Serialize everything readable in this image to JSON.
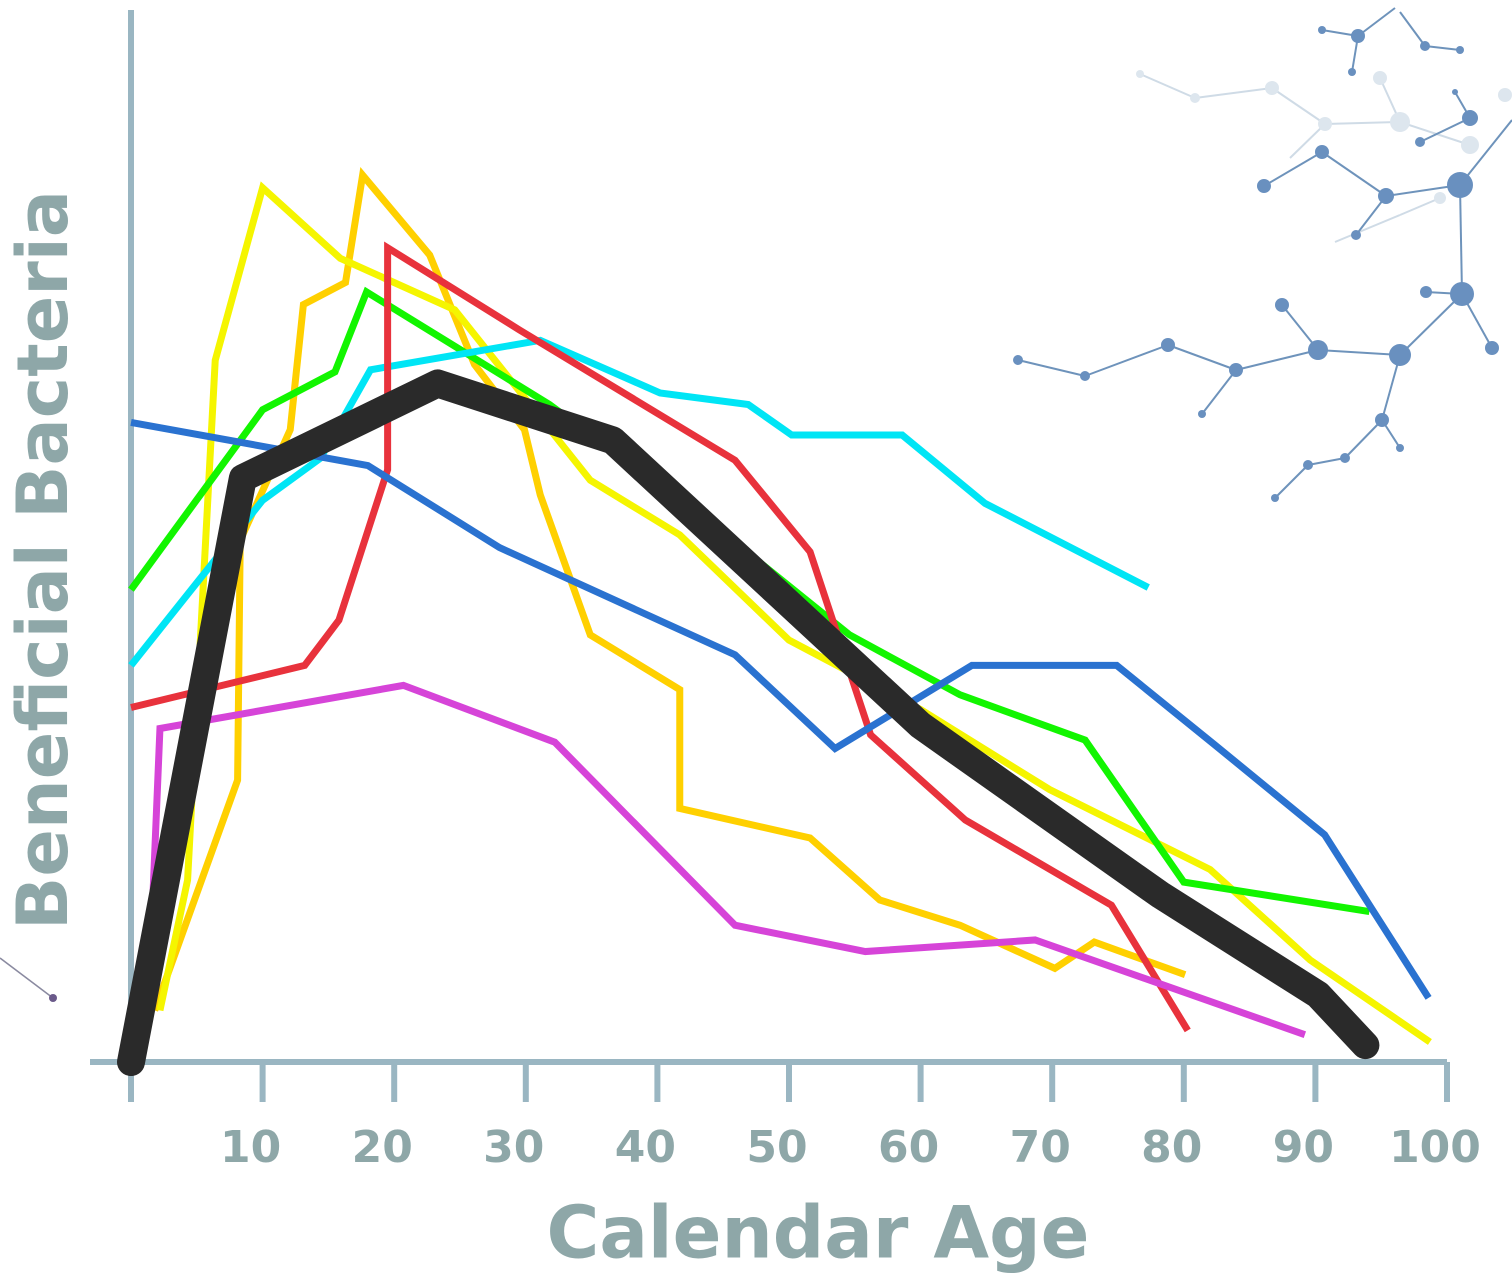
{
  "chart_data": {
    "type": "line",
    "x_label": "Calendar Age",
    "y_label": "Beneficial Bacteria",
    "xlim": [
      0,
      100
    ],
    "ylim": [
      0,
      100
    ],
    "xticks": [
      10,
      20,
      30,
      40,
      50,
      60,
      70,
      80,
      90,
      100
    ],
    "series": [
      {
        "color": "#ffd000",
        "x": [
          1.8,
          8.1,
          8.3,
          12.1,
          13.1,
          16.3,
          17.6,
          22.7,
          26.1,
          29.9,
          31.1,
          34.9,
          41.7,
          41.7,
          51.6,
          56.9,
          63,
          70.2,
          73.2,
          80.1
        ],
        "values": [
          4.9,
          26.8,
          49.6,
          60.1,
          72,
          74.1,
          84.3,
          76.7,
          66.3,
          60.1,
          53.9,
          40.6,
          35.4,
          24.1,
          21.3,
          15.4,
          13,
          8.9,
          11.4,
          8.3
        ]
      },
      {
        "color": "#f5f500",
        "x": [
          2.2,
          4.3,
          6.4,
          10,
          15.9,
          24.6,
          34.9,
          41.7,
          50,
          60,
          69.8,
          82,
          89.6,
          98.7
        ],
        "values": [
          4.9,
          17.3,
          66.7,
          83.1,
          76.4,
          71.5,
          55.3,
          50.1,
          40.1,
          33.5,
          25.9,
          18.3,
          9.7,
          1.9
        ]
      },
      {
        "color": "#12f500",
        "x": [
          0,
          10,
          15.5,
          17.9,
          31.8,
          44.7,
          54.6,
          63,
          72.5,
          80,
          94.1
        ],
        "values": [
          44.9,
          62,
          65.6,
          73.2,
          62.5,
          50.6,
          40.6,
          34.9,
          30.6,
          17.1,
          14.3
        ]
      },
      {
        "color": "#00e5f5",
        "x": [
          0,
          10,
          14.4,
          18.2,
          31.1,
          40.2,
          46.9,
          50.2,
          58.6,
          64.9,
          77.3
        ],
        "values": [
          37.7,
          53.4,
          57.4,
          65.8,
          68.6,
          63.6,
          62.5,
          59.6,
          59.6,
          53.1,
          45.1
        ]
      },
      {
        "color": "#e8323c",
        "x": [
          0,
          13.2,
          15.8,
          19.5,
          19.5,
          29.5,
          45.9,
          51.6,
          56.2,
          63.4,
          74.5,
          80.3
        ],
        "values": [
          33.7,
          37.7,
          42,
          56.3,
          77.4,
          69.6,
          57.2,
          48.5,
          31.1,
          23,
          14.9,
          3
        ]
      },
      {
        "color": "#2a72d0",
        "x": [
          0,
          18,
          28,
          45.9,
          53.5,
          63.9,
          74.9,
          82.4,
          90.7,
          98.6
        ],
        "values": [
          60.8,
          56.7,
          48.9,
          38.7,
          29.8,
          37.7,
          37.7,
          30.1,
          21.6,
          6.1
        ]
      },
      {
        "color": "#d644d8",
        "x": [
          1.3,
          2.2,
          20.7,
          32.2,
          45.9,
          55.8,
          68.7,
          89.2
        ],
        "values": [
          4.9,
          31.7,
          35.8,
          30.4,
          13,
          10.5,
          11.6,
          2.6
        ]
      },
      {
        "color": "#2a2a2a",
        "x": [
          0,
          8.5,
          23.3,
          36.6,
          60,
          78.2,
          90.2,
          93.8
        ],
        "values": [
          0,
          55.5,
          64.5,
          59.1,
          32,
          15.9,
          6.4,
          1.6
        ]
      }
    ]
  }
}
